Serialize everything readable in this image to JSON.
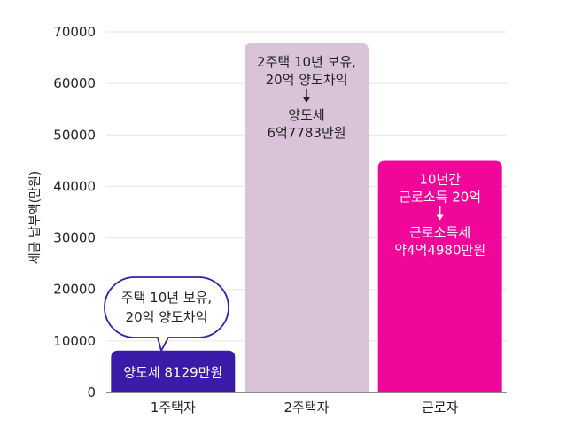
{
  "chart_data": {
    "type": "bar",
    "ylabel": "세금 납부액(만원)",
    "ylim": [
      0,
      70000
    ],
    "yticks": [
      0,
      10000,
      20000,
      30000,
      40000,
      50000,
      60000,
      70000
    ],
    "grid": true,
    "categories": [
      "1주택자",
      "2주택자",
      "근로자"
    ],
    "values": [
      8129,
      67783,
      44980
    ],
    "colors": [
      "#3b1ca8",
      "#d8c3d8",
      "#f0079a"
    ],
    "bar_labels": [
      {
        "lines": [
          "양도세 8129만원"
        ],
        "arrow": false,
        "color": "#ffffff"
      },
      {
        "lines": [
          "2주택 10년 보유,",
          "20억 양도차익",
          "↓",
          "양도세",
          "6억7783만원"
        ],
        "arrow": true,
        "color": "#222222"
      },
      {
        "lines": [
          "10년간",
          "근로소득 20억",
          "↓",
          "근로소득세",
          "약4억4980만원"
        ],
        "arrow": true,
        "color": "#ffffff"
      }
    ],
    "annotation": {
      "lines": [
        "주택 10년 보유,",
        "20억 양도차익"
      ],
      "category": "1주택자"
    }
  }
}
